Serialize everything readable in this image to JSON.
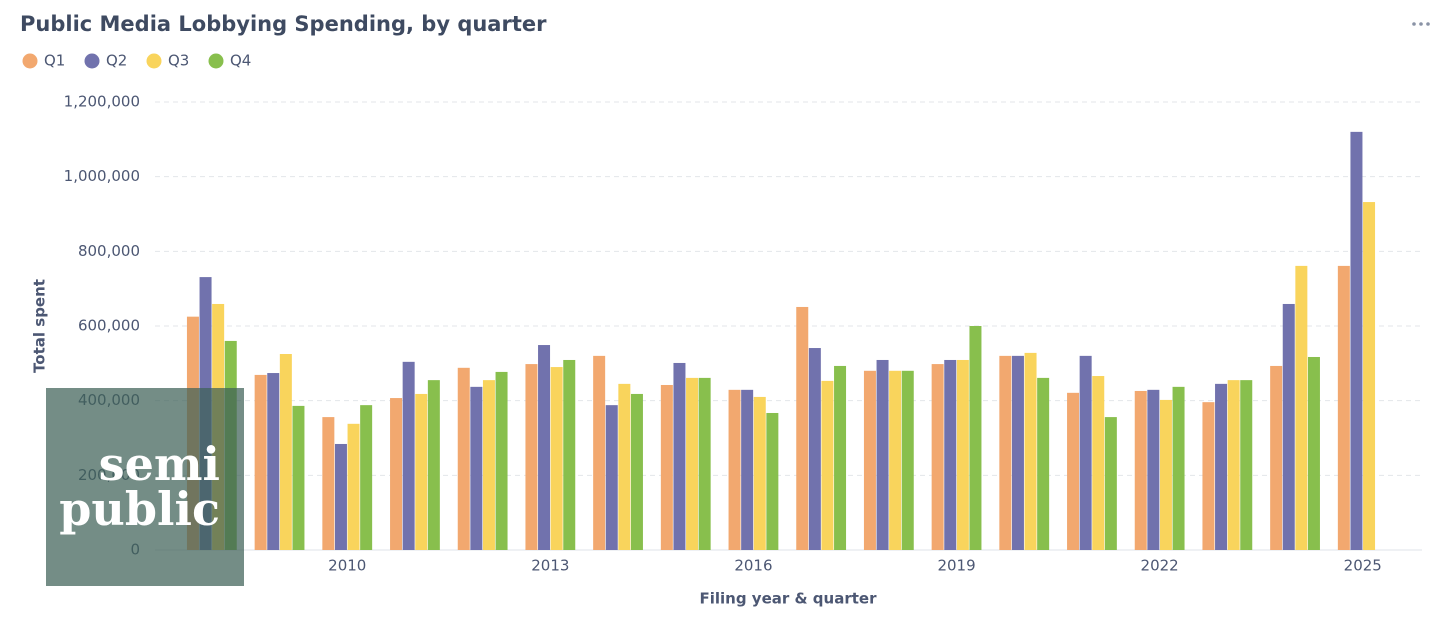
{
  "chart_data": {
    "type": "bar",
    "title": "Public Media Lobbying Spending, by quarter",
    "x_label": "Filing year & quarter",
    "y_label": "Total spent",
    "categories": [
      null,
      null,
      "2010",
      null,
      null,
      "2013",
      null,
      null,
      "2016",
      null,
      null,
      "2019",
      null,
      null,
      "2022",
      null,
      null,
      "2025"
    ],
    "series": [
      {
        "name": "Q1",
        "color": "#f2a86f",
        "values": [
          625000,
          469000,
          356000,
          407000,
          488000,
          498000,
          520000,
          442000,
          429000,
          651000,
          480000,
          498000,
          520000,
          421000,
          426000,
          396000,
          493000,
          761000
        ]
      },
      {
        "name": "Q2",
        "color": "#7172ad",
        "values": [
          731000,
          474000,
          284000,
          504000,
          437000,
          549000,
          388000,
          501000,
          429000,
          541000,
          509000,
          509000,
          520000,
          520000,
          429000,
          445000,
          659000,
          1120000
        ]
      },
      {
        "name": "Q3",
        "color": "#f9d45c",
        "values": [
          659000,
          525000,
          338000,
          418000,
          455000,
          490000,
          445000,
          461000,
          410000,
          453000,
          480000,
          509000,
          528000,
          466000,
          402000,
          455000,
          761000,
          932000
        ]
      },
      {
        "name": "Q4",
        "color": "#88bf4d",
        "values": [
          560000,
          386000,
          388000,
          455000,
          477000,
          509000,
          418000,
          461000,
          367000,
          493000,
          480000,
          600000,
          461000,
          356000,
          437000,
          455000,
          517000,
          null
        ]
      }
    ],
    "ylim": [
      0,
      1200000
    ],
    "yticks": [
      0,
      {
        "value": 200000,
        "label": "200,000"
      },
      {
        "value": 400000,
        "label": "400,000"
      },
      {
        "value": 600000,
        "label": "600,000"
      },
      {
        "value": 800000,
        "label": "800,000"
      },
      {
        "value": 1000000,
        "label": "1,000,000"
      },
      {
        "value": 1200000,
        "label": "1,200,000"
      }
    ],
    "grid": true,
    "legend": "top-left",
    "watermark": [
      "semi",
      "public"
    ]
  }
}
